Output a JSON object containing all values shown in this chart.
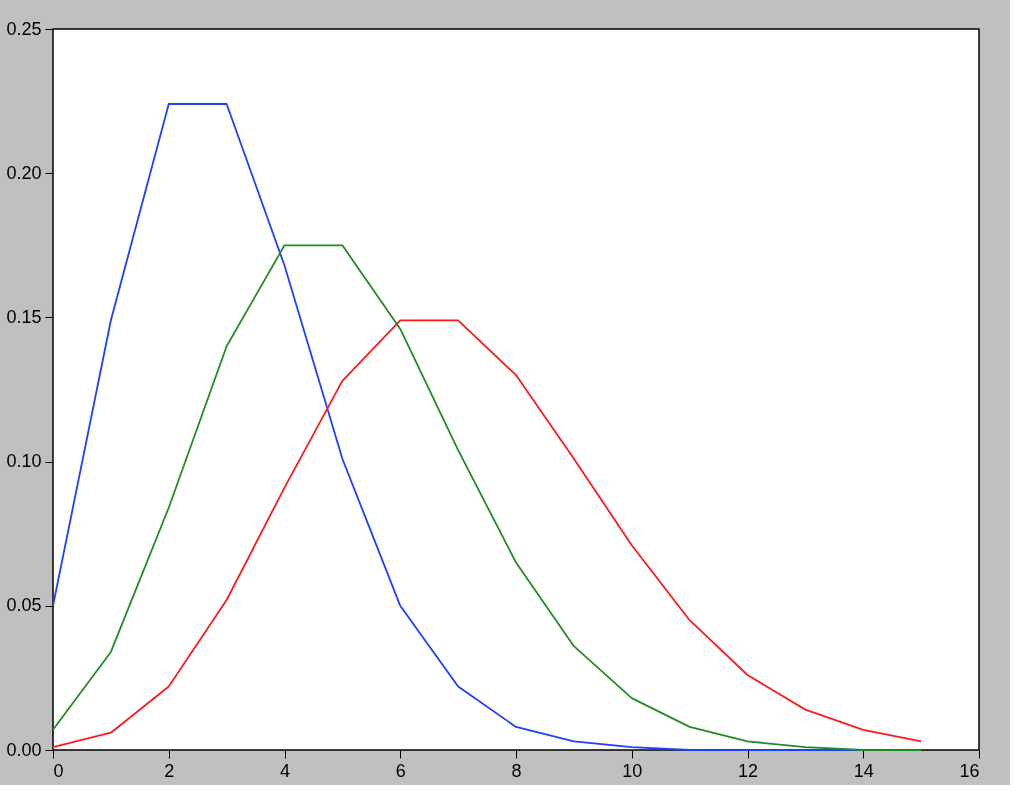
{
  "chart_data": {
    "type": "line",
    "x": [
      0,
      1,
      2,
      3,
      4,
      5,
      6,
      7,
      8,
      9,
      10,
      11,
      12,
      13,
      14,
      15
    ],
    "series": [
      {
        "color": "#1f3fff",
        "values": [
          0.05,
          0.149,
          0.224,
          0.224,
          0.168,
          0.101,
          0.05,
          0.022,
          0.008,
          0.003,
          0.001,
          0.0,
          0.0,
          0.0,
          0.0,
          0.0
        ]
      },
      {
        "color": "#228b22",
        "values": [
          0.007,
          0.034,
          0.084,
          0.14,
          0.175,
          0.175,
          0.146,
          0.104,
          0.065,
          0.036,
          0.018,
          0.008,
          0.003,
          0.001,
          0.0,
          0.0
        ]
      },
      {
        "color": "#ff1a1a",
        "values": [
          0.001,
          0.006,
          0.022,
          0.052,
          0.091,
          0.128,
          0.149,
          0.149,
          0.13,
          0.101,
          0.071,
          0.045,
          0.026,
          0.014,
          0.007,
          0.003
        ]
      }
    ],
    "xlim": [
      0,
      16
    ],
    "xticks": [
      0,
      2,
      4,
      6,
      8,
      10,
      12,
      14,
      16
    ],
    "ylim": [
      0,
      0.25
    ],
    "yticks": [
      {
        "value": 0,
        "label": "0.00"
      },
      {
        "value": 0.05,
        "label": "0.05"
      },
      {
        "value": 0.1,
        "label": "0.10"
      },
      {
        "value": 0.15,
        "label": "0.15"
      },
      {
        "value": 0.2,
        "label": "0.20"
      },
      {
        "value": 0.25,
        "label": "0.25"
      }
    ],
    "grid": false,
    "legend": false,
    "marker": "none",
    "line_style": "solid"
  }
}
